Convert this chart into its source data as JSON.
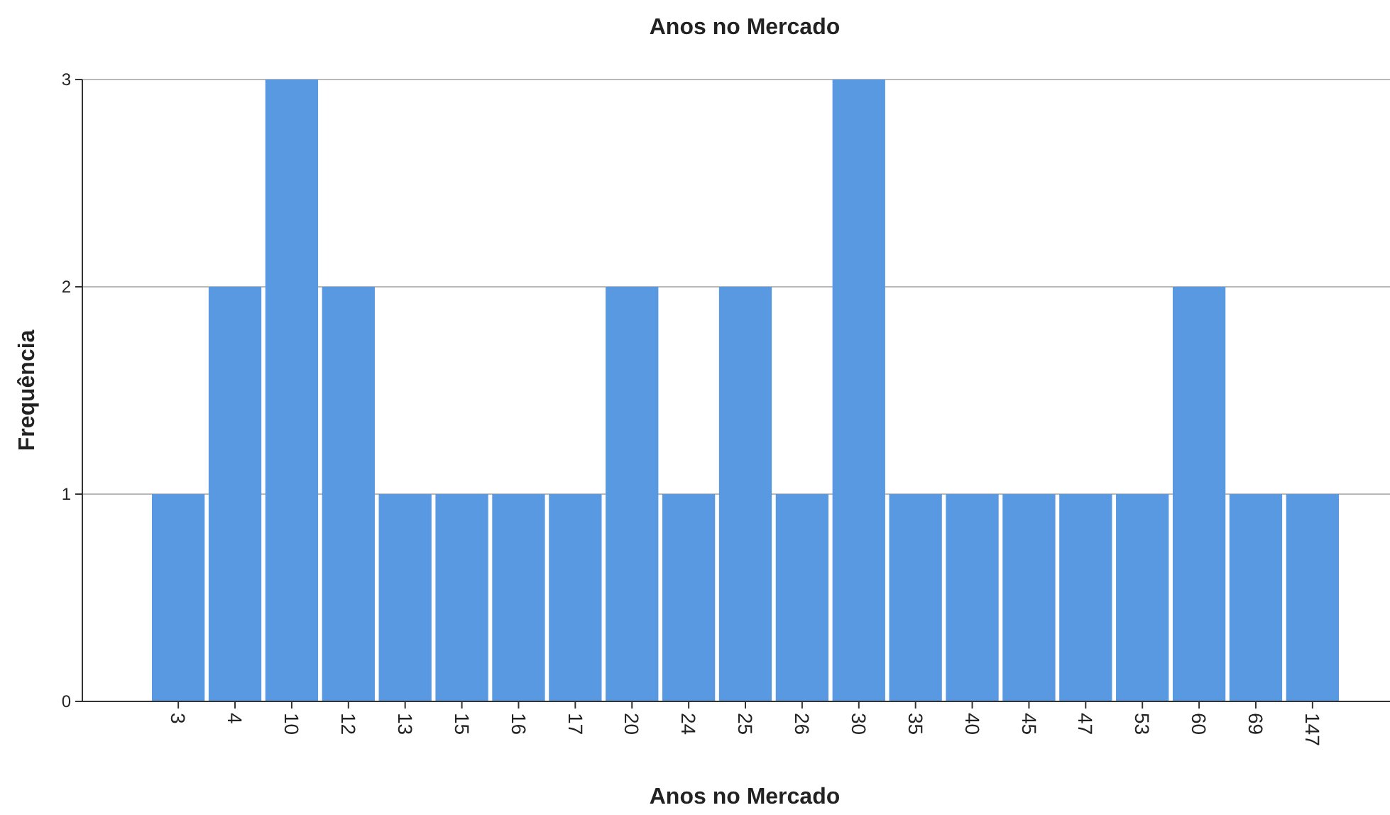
{
  "chart_data": {
    "type": "bar",
    "title": "Anos no Mercado",
    "xlabel": "Anos no Mercado",
    "ylabel": "Frequência",
    "categories": [
      "3",
      "4",
      "10",
      "12",
      "13",
      "15",
      "16",
      "17",
      "20",
      "24",
      "25",
      "26",
      "30",
      "35",
      "40",
      "45",
      "47",
      "53",
      "60",
      "69",
      "147"
    ],
    "values": [
      1,
      2,
      3,
      2,
      1,
      1,
      1,
      1,
      2,
      1,
      2,
      1,
      3,
      1,
      1,
      1,
      1,
      1,
      2,
      1,
      1
    ],
    "color": "#5899e2",
    "ylim": [
      0,
      3
    ],
    "yticks": [
      0,
      1,
      2,
      3
    ],
    "grid": "y"
  }
}
